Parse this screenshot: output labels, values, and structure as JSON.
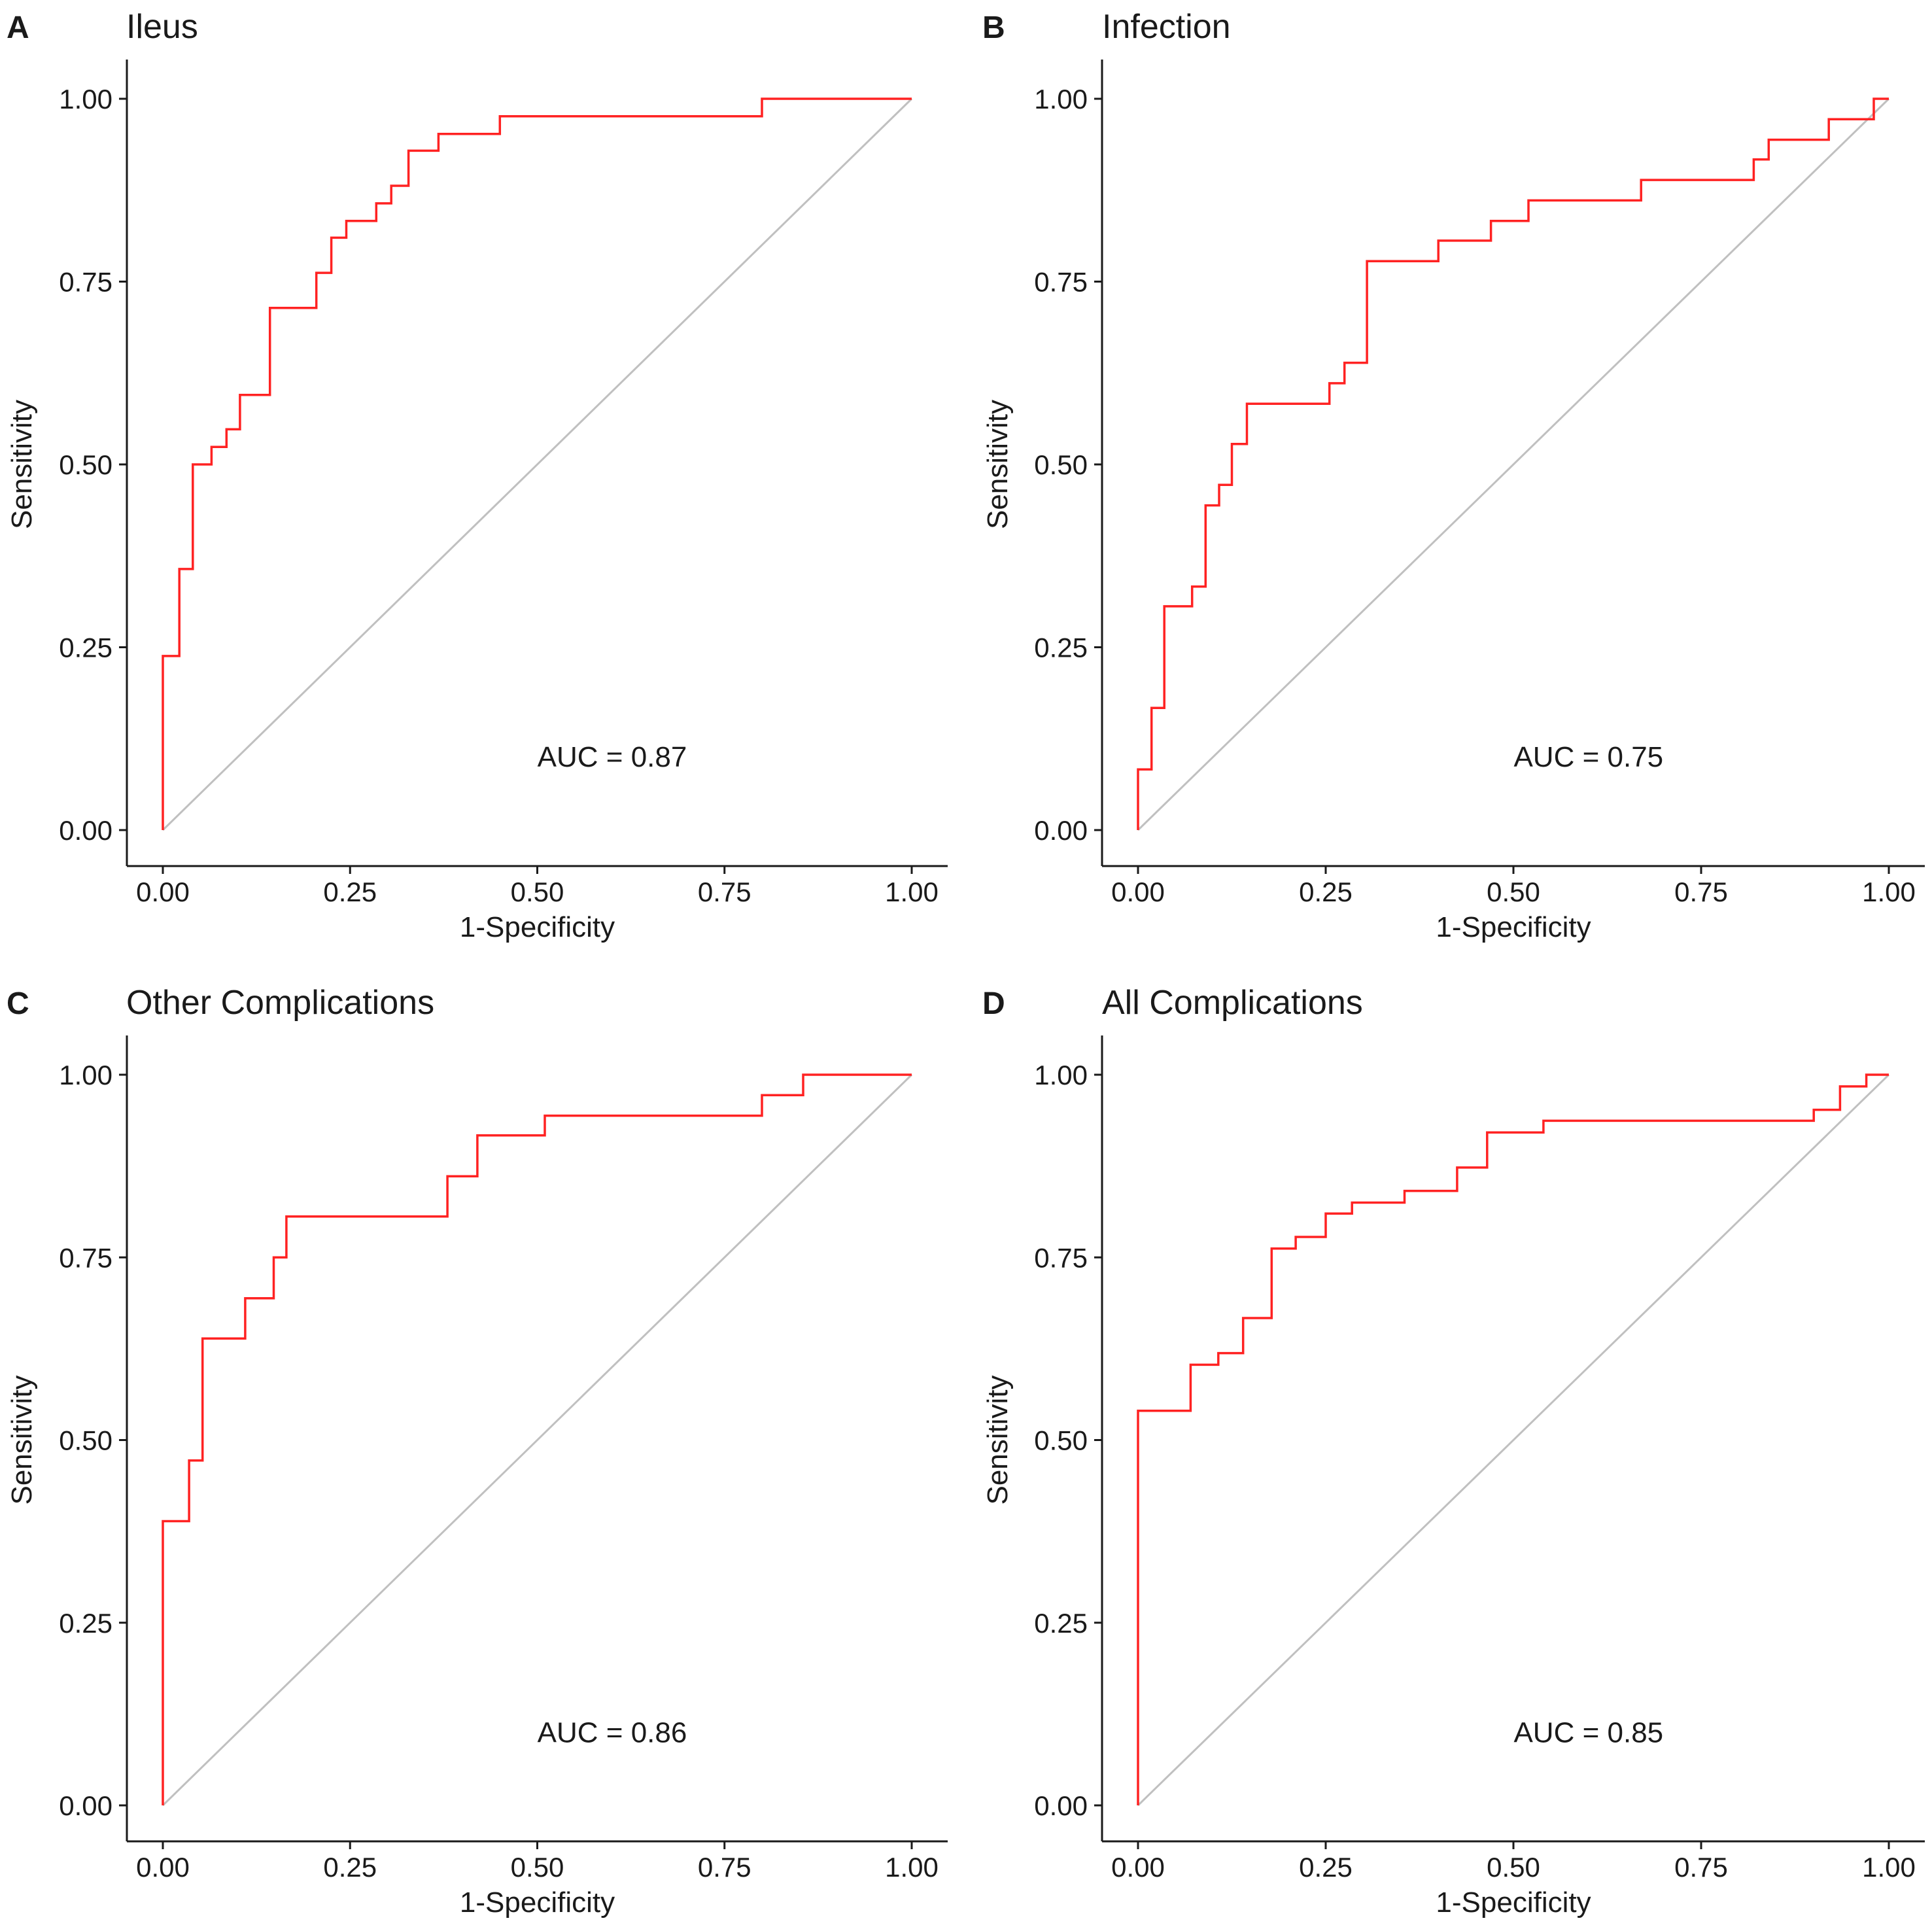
{
  "chart_data": [
    {
      "type": "line",
      "panel": "A",
      "title": "Ileus",
      "xlabel": "1-Specificity",
      "ylabel": "Sensitivity",
      "xlim": [
        0,
        1
      ],
      "ylim": [
        0,
        1
      ],
      "xticks": [
        "0.00",
        "0.25",
        "0.50",
        "0.75",
        "1.00"
      ],
      "yticks": [
        "0.00",
        "0.25",
        "0.50",
        "0.75",
        "1.00"
      ],
      "annotation": "AUC = 0.87",
      "series": [
        {
          "name": "ROC",
          "color": "#ff2222",
          "x": [
            0,
            0,
            0.022,
            0.022,
            0.04,
            0.04,
            0.065,
            0.065,
            0.085,
            0.085,
            0.103,
            0.103,
            0.143,
            0.143,
            0.205,
            0.205,
            0.225,
            0.225,
            0.245,
            0.245,
            0.285,
            0.285,
            0.305,
            0.305,
            0.328,
            0.328,
            0.368,
            0.368,
            0.45,
            0.45,
            0.8,
            0.8,
            1.0
          ],
          "y": [
            0,
            0.238,
            0.238,
            0.357,
            0.357,
            0.5,
            0.5,
            0.524,
            0.524,
            0.548,
            0.548,
            0.595,
            0.595,
            0.714,
            0.714,
            0.762,
            0.762,
            0.81,
            0.81,
            0.833,
            0.833,
            0.857,
            0.857,
            0.881,
            0.881,
            0.929,
            0.929,
            0.952,
            0.952,
            0.976,
            0.976,
            1.0,
            1.0
          ]
        },
        {
          "name": "Reference",
          "color": "#c0c0c0",
          "x": [
            0,
            1
          ],
          "y": [
            0,
            1
          ]
        }
      ]
    },
    {
      "type": "line",
      "panel": "B",
      "title": "Infection",
      "xlabel": "1-Specificity",
      "ylabel": "Sensitivity",
      "xlim": [
        0,
        1
      ],
      "ylim": [
        0,
        1
      ],
      "xticks": [
        "0.00",
        "0.25",
        "0.50",
        "0.75",
        "1.00"
      ],
      "yticks": [
        "0.00",
        "0.25",
        "0.50",
        "0.75",
        "1.00"
      ],
      "annotation": "AUC = 0.75",
      "series": [
        {
          "name": "ROC",
          "color": "#ff2222",
          "x": [
            0,
            0,
            0.018,
            0.018,
            0.035,
            0.035,
            0.072,
            0.072,
            0.09,
            0.09,
            0.108,
            0.108,
            0.125,
            0.125,
            0.145,
            0.145,
            0.255,
            0.255,
            0.275,
            0.275,
            0.305,
            0.305,
            0.4,
            0.4,
            0.47,
            0.47,
            0.52,
            0.52,
            0.67,
            0.67,
            0.82,
            0.82,
            0.84,
            0.84,
            0.92,
            0.92,
            0.98,
            0.98,
            1.0,
            1.0
          ],
          "y": [
            0,
            0.083,
            0.083,
            0.167,
            0.167,
            0.306,
            0.306,
            0.333,
            0.333,
            0.444,
            0.444,
            0.472,
            0.472,
            0.528,
            0.528,
            0.583,
            0.583,
            0.611,
            0.611,
            0.639,
            0.639,
            0.778,
            0.778,
            0.806,
            0.806,
            0.833,
            0.833,
            0.861,
            0.861,
            0.889,
            0.889,
            0.917,
            0.917,
            0.944,
            0.944,
            0.972,
            0.972,
            1.0,
            1.0,
            1.0
          ]
        },
        {
          "name": "Reference",
          "color": "#c0c0c0",
          "x": [
            0,
            1
          ],
          "y": [
            0,
            1
          ]
        }
      ]
    },
    {
      "type": "line",
      "panel": "C",
      "title": "Other Complications",
      "xlabel": "1-Specificity",
      "ylabel": "Sensitivity",
      "xlim": [
        0,
        1
      ],
      "ylim": [
        0,
        1
      ],
      "xticks": [
        "0.00",
        "0.25",
        "0.50",
        "0.75",
        "1.00"
      ],
      "yticks": [
        "0.00",
        "0.25",
        "0.50",
        "0.75",
        "1.00"
      ],
      "annotation": "AUC = 0.86",
      "series": [
        {
          "name": "ROC",
          "color": "#ff2222",
          "x": [
            0,
            0,
            0.035,
            0.035,
            0.053,
            0.053,
            0.11,
            0.11,
            0.148,
            0.148,
            0.165,
            0.165,
            0.38,
            0.38,
            0.42,
            0.42,
            0.51,
            0.51,
            0.8,
            0.8,
            0.855,
            0.855,
            1.0
          ],
          "y": [
            0,
            0.389,
            0.389,
            0.472,
            0.472,
            0.639,
            0.639,
            0.694,
            0.694,
            0.75,
            0.75,
            0.806,
            0.806,
            0.861,
            0.861,
            0.917,
            0.917,
            0.944,
            0.944,
            0.972,
            0.972,
            1.0,
            1.0
          ]
        },
        {
          "name": "Reference",
          "color": "#c0c0c0",
          "x": [
            0,
            1
          ],
          "y": [
            0,
            1
          ]
        }
      ]
    },
    {
      "type": "line",
      "panel": "D",
      "title": "All Complications",
      "xlabel": "1-Specificity",
      "ylabel": "Sensitivity",
      "xlim": [
        0,
        1
      ],
      "ylim": [
        0,
        1
      ],
      "xticks": [
        "0.00",
        "0.25",
        "0.50",
        "0.75",
        "1.00"
      ],
      "yticks": [
        "0.00",
        "0.25",
        "0.50",
        "0.75",
        "1.00"
      ],
      "annotation": "AUC = 0.85",
      "series": [
        {
          "name": "ROC",
          "color": "#ff2222",
          "x": [
            0,
            0,
            0.07,
            0.07,
            0.107,
            0.107,
            0.14,
            0.14,
            0.178,
            0.178,
            0.21,
            0.21,
            0.25,
            0.25,
            0.285,
            0.285,
            0.355,
            0.355,
            0.425,
            0.425,
            0.465,
            0.465,
            0.54,
            0.54,
            0.9,
            0.9,
            0.935,
            0.935,
            0.97,
            0.97,
            1.0
          ],
          "y": [
            0,
            0.54,
            0.54,
            0.603,
            0.603,
            0.619,
            0.619,
            0.667,
            0.667,
            0.762,
            0.762,
            0.778,
            0.778,
            0.81,
            0.81,
            0.825,
            0.825,
            0.841,
            0.841,
            0.873,
            0.873,
            0.921,
            0.921,
            0.937,
            0.937,
            0.952,
            0.952,
            0.984,
            0.984,
            1.0,
            1.0
          ]
        },
        {
          "name": "Reference",
          "color": "#c0c0c0",
          "x": [
            0,
            1
          ],
          "y": [
            0,
            1
          ]
        }
      ]
    }
  ]
}
